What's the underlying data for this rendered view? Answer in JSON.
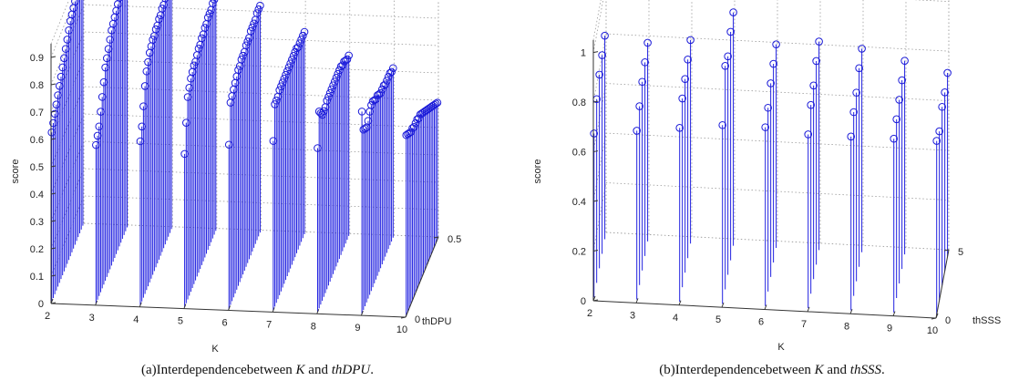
{
  "colors": {
    "stem": "#1f1fe0",
    "marker": "#1a1ad8",
    "axis": "#333333",
    "grid": "#9a9a9a"
  },
  "chart_data": [
    {
      "type": "stem3d",
      "xlabel": "K",
      "ylabel": "thDPU",
      "zlabel": "score",
      "x_ticks": [
        "2",
        "3",
        "4",
        "5",
        "6",
        "7",
        "8",
        "9",
        "10"
      ],
      "y_ticks": [
        "0",
        "0.5"
      ],
      "z_ticks": [
        "0",
        "0.1",
        "0.2",
        "0.3",
        "0.4",
        "0.5",
        "0.6",
        "0.7",
        "0.8",
        "0.9"
      ],
      "zlim": [
        0,
        0.95
      ],
      "ylim": [
        0,
        0.5
      ],
      "caption": {
        "prefix": "(a)Interdependencebetween",
        "var1": "K",
        "and": "and",
        "var2": "thDPU",
        "suffix": "."
      },
      "series": [
        {
          "K": 2,
          "scores": [
            0.62,
            0.64,
            0.66,
            0.68,
            0.7,
            0.72,
            0.74,
            0.76,
            0.78,
            0.8,
            0.82,
            0.84,
            0.86,
            0.87,
            0.88,
            0.89,
            0.9,
            0.91,
            0.92,
            0.93,
            0.94
          ]
        },
        {
          "K": 3,
          "scores": [
            0.58,
            0.6,
            0.62,
            0.66,
            0.7,
            0.74,
            0.78,
            0.8,
            0.82,
            0.84,
            0.86,
            0.87,
            0.88,
            0.89,
            0.9,
            0.91,
            0.92,
            0.92,
            0.93,
            0.93,
            0.93
          ]
        },
        {
          "K": 4,
          "scores": [
            0.6,
            0.64,
            0.7,
            0.76,
            0.8,
            0.82,
            0.84,
            0.85,
            0.86,
            0.86,
            0.87,
            0.87,
            0.88,
            0.88,
            0.89,
            0.89,
            0.9,
            0.9,
            0.91,
            0.91,
            0.91
          ]
        },
        {
          "K": 5,
          "scores": [
            0.56,
            0.66,
            0.74,
            0.76,
            0.78,
            0.79,
            0.8,
            0.8,
            0.81,
            0.82,
            0.82,
            0.83,
            0.83,
            0.84,
            0.84,
            0.85,
            0.85,
            0.85,
            0.86,
            0.86,
            0.86
          ]
        },
        {
          "K": 6,
          "scores": [
            0.6,
            0.74,
            0.75,
            0.76,
            0.77,
            0.78,
            0.79,
            0.79,
            0.8,
            0.8,
            0.8,
            0.81,
            0.81,
            0.81,
            0.82,
            0.82,
            0.82,
            0.82,
            0.83,
            0.83,
            0.83
          ]
        },
        {
          "K": 7,
          "scores": [
            0.62,
            0.74,
            0.74,
            0.74,
            0.75,
            0.75,
            0.75,
            0.75,
            0.75,
            0.75,
            0.75,
            0.75,
            0.75,
            0.75,
            0.75,
            0.75,
            0.74,
            0.74,
            0.74,
            0.74,
            0.74
          ]
        },
        {
          "K": 8,
          "scores": [
            0.6,
            0.72,
            0.7,
            0.68,
            0.68,
            0.68,
            0.69,
            0.69,
            0.69,
            0.69,
            0.69,
            0.69,
            0.69,
            0.69,
            0.69,
            0.69,
            0.68,
            0.68,
            0.67,
            0.66,
            0.66
          ]
        },
        {
          "K": 9,
          "scores": [
            0.74,
            0.66,
            0.65,
            0.64,
            0.65,
            0.67,
            0.68,
            0.68,
            0.67,
            0.66,
            0.66,
            0.65,
            0.64,
            0.64,
            0.64,
            0.63,
            0.63,
            0.63,
            0.63,
            0.62,
            0.62
          ]
        },
        {
          "K": 10,
          "scores": [
            0.66,
            0.65,
            0.64,
            0.63,
            0.63,
            0.62,
            0.62,
            0.62,
            0.61,
            0.61,
            0.6,
            0.59,
            0.58,
            0.57,
            0.56,
            0.55,
            0.54,
            0.53,
            0.52,
            0.51,
            0.5
          ]
        }
      ]
    },
    {
      "type": "stem3d",
      "xlabel": "K",
      "ylabel": "thSSS",
      "zlabel": "score",
      "x_ticks": [
        "2",
        "3",
        "4",
        "5",
        "6",
        "7",
        "8",
        "9",
        "10"
      ],
      "y_ticks": [
        "0",
        "5"
      ],
      "z_ticks": [
        "0",
        "0.2",
        "0.4",
        "0.6",
        "0.8",
        "1"
      ],
      "zlim": [
        0,
        1.05
      ],
      "ylim": [
        0,
        5
      ],
      "caption": {
        "prefix": "(b)Interdependencebetween",
        "var1": "K",
        "and": "and",
        "var2": "thSSS",
        "suffix": "."
      },
      "series": [
        {
          "K": 2,
          "scores": [
            0.66,
            0.74,
            0.78,
            0.8,
            0.82
          ]
        },
        {
          "K": 3,
          "scores": [
            0.68,
            0.72,
            0.76,
            0.78,
            0.8
          ]
        },
        {
          "K": 4,
          "scores": [
            0.7,
            0.76,
            0.78,
            0.8,
            0.82
          ]
        },
        {
          "K": 5,
          "scores": [
            0.72,
            0.9,
            0.88,
            0.92,
            0.94
          ]
        },
        {
          "K": 6,
          "scores": [
            0.72,
            0.74,
            0.78,
            0.8,
            0.82
          ]
        },
        {
          "K": 7,
          "scores": [
            0.7,
            0.76,
            0.78,
            0.82,
            0.84
          ]
        },
        {
          "K": 8,
          "scores": [
            0.7,
            0.74,
            0.76,
            0.8,
            0.82
          ]
        },
        {
          "K": 9,
          "scores": [
            0.7,
            0.72,
            0.74,
            0.76,
            0.78
          ]
        },
        {
          "K": 10,
          "scores": [
            0.7,
            0.68,
            0.72,
            0.72,
            0.74
          ]
        }
      ]
    }
  ]
}
